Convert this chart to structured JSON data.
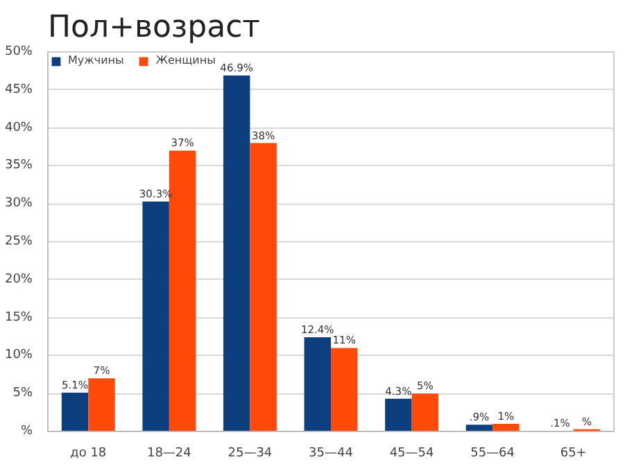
{
  "chart_data": {
    "type": "bar",
    "title": "Пол+возраст",
    "categories": [
      "до 18",
      "18—24",
      "25—34",
      "35—44",
      "45—54",
      "55—64",
      "65+"
    ],
    "series": [
      {
        "name": "Мужчины",
        "color": "#0d3f7f",
        "values": [
          5.1,
          30.3,
          46.9,
          12.4,
          4.3,
          0.9,
          0.1
        ],
        "value_labels": [
          "5.1%",
          "30.3%",
          "46.9%",
          "12.4%",
          "4.3%",
          ".9%",
          ".1%"
        ]
      },
      {
        "name": "Женщины",
        "color": "#ff4a0a",
        "values": [
          7,
          37,
          38,
          11,
          5,
          1,
          0.3
        ],
        "value_labels": [
          "7%",
          "37%",
          "38%",
          "11%",
          "5%",
          "1%",
          "%"
        ]
      }
    ],
    "ylim": [
      0,
      50
    ],
    "yticks": [
      {
        "value": 0,
        "label": "%"
      },
      {
        "value": 5,
        "label": "5%"
      },
      {
        "value": 10,
        "label": "10%"
      },
      {
        "value": 15,
        "label": "15%"
      },
      {
        "value": 20,
        "label": "20%"
      },
      {
        "value": 25,
        "label": "25%"
      },
      {
        "value": 30,
        "label": "30%"
      },
      {
        "value": 35,
        "label": "35%"
      },
      {
        "value": 40,
        "label": "40%"
      },
      {
        "value": 45,
        "label": "45%"
      },
      {
        "value": 50,
        "label": "50%"
      }
    ],
    "grid": "y",
    "legend": "top left"
  }
}
